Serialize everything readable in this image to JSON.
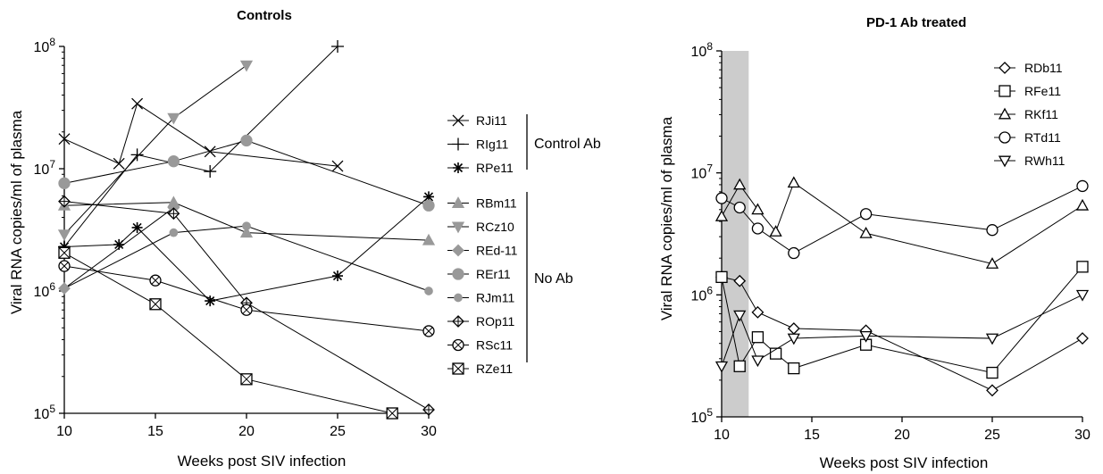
{
  "chart_data": [
    {
      "type": "line",
      "title": "Controls",
      "xlabel": "Weeks post SIV infection",
      "ylabel": "Viral RNA copies/ml of plasma",
      "xlim": [
        10,
        30
      ],
      "ylim": [
        100000,
        100000000
      ],
      "yscale": "log",
      "xticks": [
        "10",
        "15",
        "20",
        "25",
        "30"
      ],
      "yticks": [
        {
          "value": 100000,
          "mant": "10",
          "exp": "5"
        },
        {
          "value": 1000000,
          "mant": "10",
          "exp": "6"
        },
        {
          "value": 10000000,
          "mant": "10",
          "exp": "7"
        },
        {
          "value": 100000000,
          "mant": "10",
          "exp": "8"
        }
      ],
      "series": [
        {
          "name": "RJi11",
          "marker": "x",
          "color": "#000000",
          "points": [
            [
              10,
              17500000
            ],
            [
              13,
              11000000
            ],
            [
              14,
              34000000
            ],
            [
              18,
              13800000
            ],
            [
              25,
              10500000
            ]
          ]
        },
        {
          "name": "RIg11",
          "marker": "plus",
          "color": "#000000",
          "points": [
            [
              10,
              2300000
            ],
            [
              14,
              13000000
            ],
            [
              18,
              9500000
            ],
            [
              25,
              100000000
            ]
          ]
        },
        {
          "name": "RPe11",
          "marker": "star",
          "color": "#000000",
          "points": [
            [
              10,
              2300000
            ],
            [
              13,
              2400000
            ],
            [
              14,
              3300000
            ],
            [
              18,
              830000
            ],
            [
              25,
              1330000
            ],
            [
              30,
              5900000
            ]
          ]
        },
        {
          "name": "RBm11",
          "marker": "triangle-up-filled",
          "color": "#999999",
          "points": [
            [
              10,
              5000000
            ],
            [
              16,
              5300000
            ],
            [
              20,
              3000000
            ],
            [
              30,
              2600000
            ]
          ]
        },
        {
          "name": "RCz10",
          "marker": "triangle-down-filled",
          "color": "#999999",
          "points": [
            [
              10,
              2900000
            ],
            [
              16,
              26000000
            ],
            [
              20,
              70000000
            ]
          ]
        },
        {
          "name": "REd-11",
          "marker": "diamond-filled",
          "color": "#999999",
          "points": [
            [
              10,
              1050000
            ],
            [
              16,
              4800000
            ]
          ]
        },
        {
          "name": "REr11",
          "marker": "circle-filled",
          "color": "#999999",
          "points": [
            [
              10,
              7600000
            ],
            [
              16,
              11500000
            ],
            [
              20,
              17000000
            ],
            [
              30,
              5000000
            ]
          ]
        },
        {
          "name": "RJm11",
          "marker": "circle-filled-small",
          "color": "#999999",
          "points": [
            [
              10,
              1050000
            ],
            [
              16,
              3000000
            ],
            [
              20,
              3400000
            ],
            [
              30,
              1000000
            ]
          ]
        },
        {
          "name": "ROp11",
          "marker": "crossed-diamond",
          "color": "#000000",
          "points": [
            [
              10,
              5400000
            ],
            [
              16,
              4300000
            ],
            [
              20,
              800000
            ],
            [
              30,
              107000
            ]
          ]
        },
        {
          "name": "RSc11",
          "marker": "crossed-circle",
          "color": "#000000",
          "points": [
            [
              10,
              1600000
            ],
            [
              15,
              1220000
            ],
            [
              20,
              700000
            ],
            [
              30,
              470000
            ]
          ]
        },
        {
          "name": "RZe11",
          "marker": "crossed-square",
          "color": "#000000",
          "points": [
            [
              10,
              2050000
            ],
            [
              15,
              780000
            ],
            [
              20,
              190000
            ],
            [
              28,
              100000
            ]
          ]
        }
      ],
      "legend_groups": [
        {
          "label": "Control Ab",
          "members": [
            "RJi11",
            "RIg11",
            "RPe11"
          ]
        },
        {
          "label": "No Ab",
          "members": [
            "RBm11",
            "RCz10",
            "REd-11",
            "REr11",
            "RJm11",
            "ROp11",
            "RSc11",
            "RZe11"
          ]
        }
      ],
      "grid": false,
      "legend_position": "right"
    },
    {
      "type": "line",
      "title": "PD-1 Ab treated",
      "xlabel": "Weeks post SIV infection",
      "ylabel": "Viral RNA copies/ml of plasma",
      "xlim": [
        10,
        30
      ],
      "ylim": [
        100000,
        100000000
      ],
      "yscale": "log",
      "xticks": [
        "10",
        "15",
        "20",
        "25",
        "30"
      ],
      "yticks": [
        {
          "value": 100000,
          "mant": "10",
          "exp": "5"
        },
        {
          "value": 1000000,
          "mant": "10",
          "exp": "6"
        },
        {
          "value": 10000000,
          "mant": "10",
          "exp": "7"
        },
        {
          "value": 100000000,
          "mant": "10",
          "exp": "8"
        }
      ],
      "shaded_region": {
        "x": [
          10,
          11.5
        ],
        "color": "#cccccc"
      },
      "series": [
        {
          "name": "RDb11",
          "marker": "diamond",
          "color": "#000000",
          "points": [
            [
              10,
              1400000
            ],
            [
              11,
              1300000
            ],
            [
              12,
              720000
            ],
            [
              14,
              530000
            ],
            [
              18,
              510000
            ],
            [
              25,
              165000
            ],
            [
              30,
              440000
            ]
          ]
        },
        {
          "name": "RFe11",
          "marker": "square",
          "color": "#000000",
          "points": [
            [
              10,
              1400000
            ],
            [
              11,
              260000
            ],
            [
              12,
              450000
            ],
            [
              13,
              330000
            ],
            [
              14,
              250000
            ],
            [
              18,
              390000
            ],
            [
              25,
              230000
            ],
            [
              30,
              1700000
            ]
          ]
        },
        {
          "name": "RKf11",
          "marker": "triangle-up",
          "color": "#000000",
          "points": [
            [
              10,
              4400000
            ],
            [
              11,
              8000000
            ],
            [
              12,
              5000000
            ],
            [
              13,
              3300000
            ],
            [
              14,
              8300000
            ],
            [
              18,
              3200000
            ],
            [
              25,
              1800000
            ],
            [
              30,
              5400000
            ]
          ]
        },
        {
          "name": "RTd11",
          "marker": "circle",
          "color": "#000000",
          "points": [
            [
              10,
              6200000
            ],
            [
              11,
              5200000
            ],
            [
              12,
              3500000
            ],
            [
              14,
              2200000
            ],
            [
              18,
              4600000
            ],
            [
              25,
              3400000
            ],
            [
              30,
              7800000
            ]
          ]
        },
        {
          "name": "RWh11",
          "marker": "triangle-down",
          "color": "#000000",
          "points": [
            [
              10,
              260000
            ],
            [
              11,
              680000
            ],
            [
              12,
              290000
            ],
            [
              14,
              440000
            ],
            [
              18,
              460000
            ],
            [
              25,
              440000
            ],
            [
              30,
              1000000
            ]
          ]
        }
      ],
      "grid": false,
      "legend_position": "top-right"
    }
  ]
}
